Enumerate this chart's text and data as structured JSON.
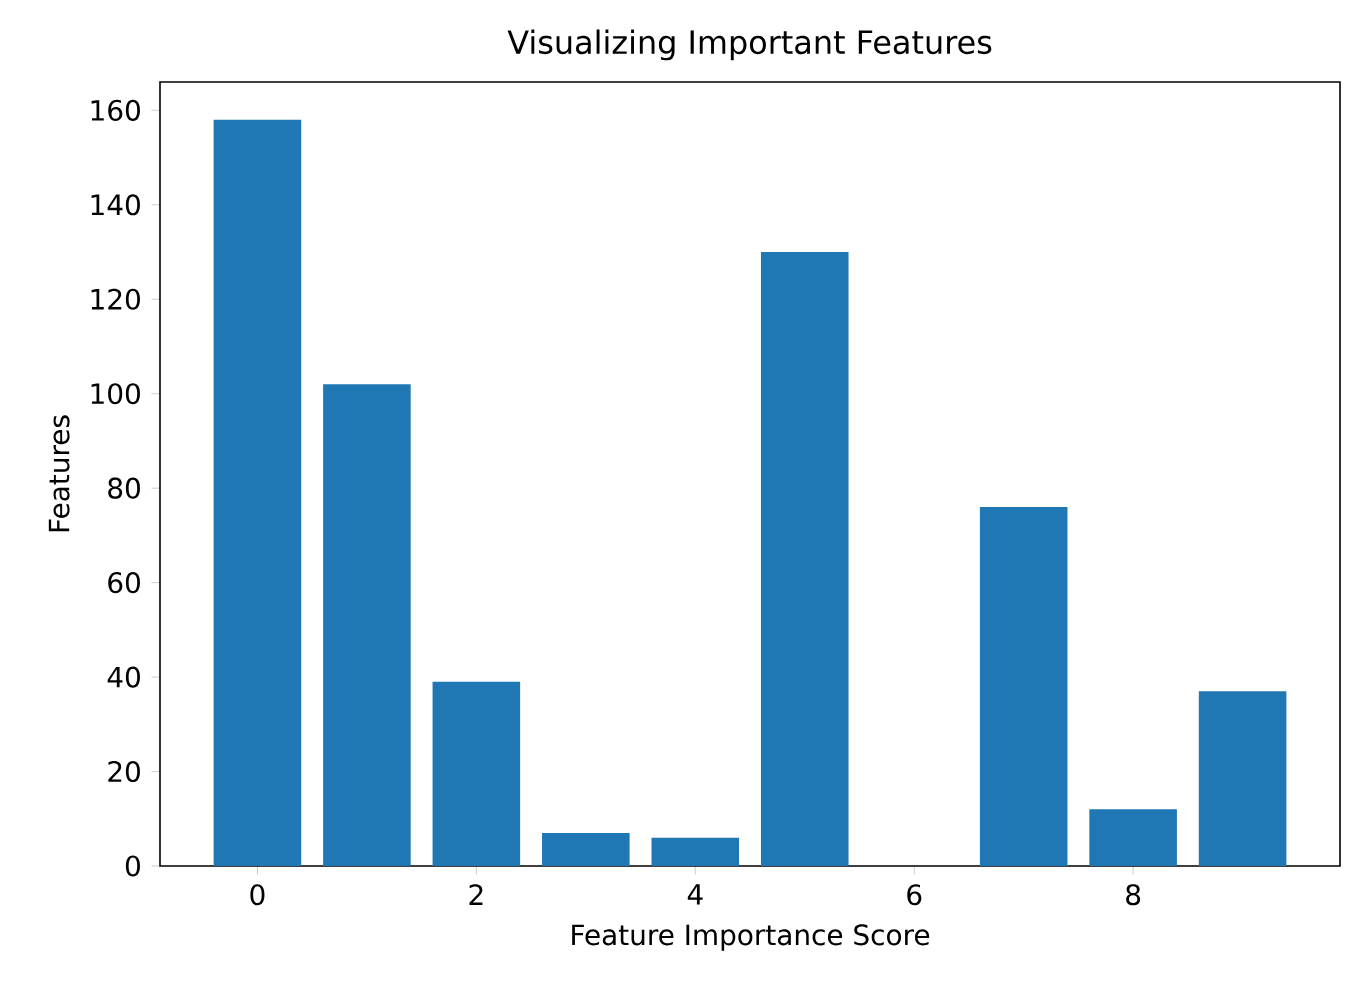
{
  "chart_data": {
    "type": "bar",
    "title": "Visualizing Important Features",
    "xlabel": "Feature Importance Score",
    "ylabel": "Features",
    "x": [
      0,
      1,
      2,
      3,
      4,
      5,
      6,
      7,
      8,
      9
    ],
    "values": [
      158,
      102,
      39,
      7,
      6,
      130,
      0,
      76,
      12,
      37
    ],
    "color": "#1f77b4",
    "xlim": [
      -0.89,
      9.89
    ],
    "ylim": [
      0,
      166
    ],
    "xticks": [
      0,
      2,
      4,
      6,
      8
    ],
    "yticks": [
      0,
      20,
      40,
      60,
      80,
      100,
      120,
      140,
      160
    ]
  }
}
